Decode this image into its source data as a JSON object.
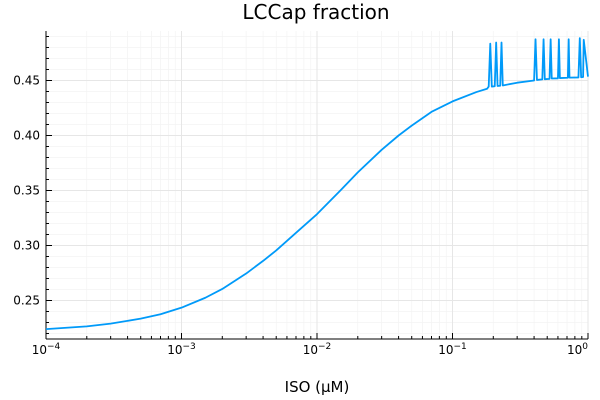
{
  "chart_data": {
    "type": "line",
    "title": "LCCap fraction",
    "xlabel": "ISO (μM)",
    "ylabel": "",
    "xscale": "log",
    "xlim": [
      0.0001,
      1
    ],
    "ylim": [
      0.215,
      0.495
    ],
    "grid": true,
    "legend": "none",
    "x_ticks": [
      {
        "value": 0.0001,
        "base": "10",
        "exp": "−4"
      },
      {
        "value": 0.001,
        "base": "10",
        "exp": "−3"
      },
      {
        "value": 0.01,
        "base": "10",
        "exp": "−2"
      },
      {
        "value": 0.1,
        "base": "10",
        "exp": "−1"
      },
      {
        "value": 1,
        "base": "10",
        "exp": "0"
      }
    ],
    "y_ticks": [
      {
        "value": 0.25,
        "label": "0.25"
      },
      {
        "value": 0.3,
        "label": "0.30"
      },
      {
        "value": 0.35,
        "label": "0.35"
      },
      {
        "value": 0.4,
        "label": "0.40"
      },
      {
        "value": 0.45,
        "label": "0.45"
      }
    ],
    "series": [
      {
        "color": "#009af9",
        "x": [
          0.0001,
          0.0002,
          0.0003,
          0.0005,
          0.0007,
          0.001,
          0.0015,
          0.002,
          0.003,
          0.004,
          0.005,
          0.007,
          0.01,
          0.015,
          0.02,
          0.03,
          0.04,
          0.05,
          0.07,
          0.1,
          0.15,
          0.18,
          0.185,
          0.19,
          0.195,
          0.205,
          0.21,
          0.215,
          0.225,
          0.23,
          0.235,
          0.3,
          0.4,
          0.41,
          0.42,
          0.46,
          0.47,
          0.48,
          0.52,
          0.53,
          0.54,
          0.6,
          0.61,
          0.62,
          0.71,
          0.72,
          0.73,
          0.85,
          0.87,
          0.89,
          0.92,
          0.93,
          1.0
        ],
        "y": [
          0.224,
          0.2265,
          0.229,
          0.2335,
          0.2375,
          0.2435,
          0.2525,
          0.2605,
          0.2745,
          0.286,
          0.2955,
          0.3115,
          0.3285,
          0.3505,
          0.3665,
          0.387,
          0.4,
          0.409,
          0.4215,
          0.431,
          0.4395,
          0.4425,
          0.4445,
          0.4835,
          0.4445,
          0.4448,
          0.4845,
          0.445,
          0.4452,
          0.4845,
          0.4455,
          0.448,
          0.45,
          0.4875,
          0.4505,
          0.451,
          0.4875,
          0.4512,
          0.4515,
          0.4875,
          0.4518,
          0.452,
          0.4875,
          0.4522,
          0.4525,
          0.4875,
          0.4526,
          0.4528,
          0.4885,
          0.453,
          0.4532,
          0.487,
          0.4535
        ]
      }
    ]
  }
}
